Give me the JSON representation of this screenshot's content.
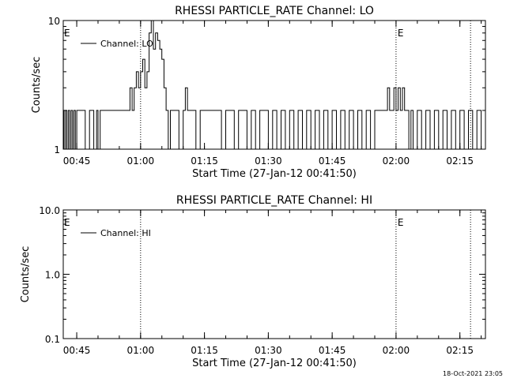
{
  "chart_data": [
    {
      "type": "line",
      "title": "RHESSI PARTICLE_RATE Channel: LO",
      "xlabel": "Start Time (27-Jan-12 00:41:50)",
      "ylabel": "Counts/sec",
      "y_scale": "log",
      "ylim": [
        1,
        10
      ],
      "xlim": [
        "00:41:50",
        "02:21:00"
      ],
      "x_ticks": [
        "00:45",
        "01:00",
        "01:15",
        "01:30",
        "01:45",
        "02:00",
        "02:15"
      ],
      "y_ticks": [
        "1",
        "10"
      ],
      "legend": {
        "placement": "top-left",
        "entries": [
          "Channel: LO"
        ]
      },
      "markers": [
        {
          "time": "01:00",
          "label": ""
        },
        {
          "time": "02:00",
          "label": "E"
        },
        {
          "time": "02:17:30",
          "label": ""
        }
      ],
      "edge_label": "E",
      "series": [
        {
          "name": "Channel: LO",
          "x": [
            "00:41:50",
            "00:42:00",
            "00:42:20",
            "00:42:40",
            "00:43:00",
            "00:43:20",
            "00:43:40",
            "00:44:00",
            "00:44:20",
            "00:44:40",
            "00:45:00",
            "00:45:20",
            "00:46:00",
            "00:47:00",
            "00:48:00",
            "00:49:00",
            "00:49:40",
            "00:50:00",
            "00:50:30",
            "00:51:00",
            "00:52:00",
            "00:53:00",
            "00:54:00",
            "00:55:00",
            "00:56:00",
            "00:57:00",
            "00:57:30",
            "00:58:00",
            "00:58:30",
            "00:59:00",
            "00:59:30",
            "01:00:00",
            "01:00:30",
            "01:01:00",
            "01:01:30",
            "01:02:00",
            "01:02:30",
            "01:03:00",
            "01:03:30",
            "01:04:00",
            "01:04:30",
            "01:05:00",
            "01:05:30",
            "01:06:00",
            "01:06:30",
            "01:07:00",
            "01:07:30",
            "01:08:00",
            "01:09:00",
            "01:10:00",
            "01:10:30",
            "01:11:00",
            "01:12:00",
            "01:13:00",
            "01:14:00",
            "01:15:00",
            "01:16:00",
            "01:17:00",
            "01:18:00",
            "01:19:00",
            "01:20:00",
            "01:21:00",
            "01:22:00",
            "01:23:00",
            "01:24:00",
            "01:25:00",
            "01:26:00",
            "01:27:00",
            "01:28:00",
            "01:29:00",
            "01:30:00",
            "01:31:00",
            "01:32:00",
            "01:33:00",
            "01:34:00",
            "01:35:00",
            "01:36:00",
            "01:37:00",
            "01:38:00",
            "01:39:00",
            "01:40:00",
            "01:41:00",
            "01:42:00",
            "01:43:00",
            "01:44:00",
            "01:45:00",
            "01:46:00",
            "01:47:00",
            "01:48:00",
            "01:49:00",
            "01:50:00",
            "01:51:00",
            "01:52:00",
            "01:53:00",
            "01:54:00",
            "01:55:00",
            "01:56:00",
            "01:57:00",
            "01:57:30",
            "01:58:00",
            "01:58:30",
            "01:59:00",
            "01:59:30",
            "02:00:00",
            "02:00:30",
            "02:01:00",
            "02:01:30",
            "02:02:00",
            "02:02:30",
            "02:03:00",
            "02:03:30",
            "02:04:00",
            "02:05:00",
            "02:06:00",
            "02:07:00",
            "02:08:00",
            "02:09:00",
            "02:10:00",
            "02:11:00",
            "02:12:00",
            "02:13:00",
            "02:14:00",
            "02:15:00",
            "02:16:00",
            "02:17:00",
            "02:18:00",
            "02:19:00",
            "02:20:00",
            "02:21:00"
          ],
          "y": [
            2,
            1,
            2,
            1,
            2,
            1,
            2,
            1,
            2,
            1,
            2,
            2,
            2,
            1,
            2,
            1,
            2,
            1,
            2,
            2,
            2,
            2,
            2,
            2,
            2,
            2,
            3,
            2,
            3,
            4,
            3,
            4,
            5,
            3,
            4,
            8,
            10,
            6,
            8,
            7,
            6,
            5,
            3,
            2,
            1,
            2,
            2,
            2,
            1,
            2,
            3,
            2,
            2,
            1,
            2,
            2,
            2,
            2,
            2,
            1,
            2,
            2,
            1,
            2,
            2,
            1,
            2,
            1,
            2,
            2,
            1,
            2,
            1,
            2,
            1,
            2,
            1,
            2,
            1,
            2,
            1,
            2,
            1,
            2,
            1,
            2,
            1,
            2,
            1,
            2,
            1,
            2,
            1,
            2,
            1,
            2,
            2,
            2,
            2,
            3,
            2,
            2,
            3,
            2,
            3,
            2,
            3,
            2,
            2,
            1,
            2,
            1,
            2,
            1,
            2,
            1,
            2,
            1,
            2,
            1,
            2,
            1,
            2,
            1,
            2,
            1,
            2,
            1,
            2
          ]
        }
      ]
    },
    {
      "type": "line",
      "title": "RHESSI PARTICLE_RATE Channel: HI",
      "xlabel": "Start Time (27-Jan-12 00:41:50)",
      "ylabel": "Counts/sec",
      "y_scale": "log",
      "ylim": [
        0.1,
        10.0
      ],
      "xlim": [
        "00:41:50",
        "02:21:00"
      ],
      "x_ticks": [
        "00:45",
        "01:00",
        "01:15",
        "01:30",
        "01:45",
        "02:00",
        "02:15"
      ],
      "y_ticks": [
        "0.1",
        "1.0",
        "10.0"
      ],
      "legend": {
        "placement": "top-left",
        "entries": [
          "Channel: HI"
        ]
      },
      "markers": [
        {
          "time": "01:00",
          "label": ""
        },
        {
          "time": "02:00",
          "label": "E"
        },
        {
          "time": "02:17:30",
          "label": ""
        }
      ],
      "edge_label": "E",
      "series": [
        {
          "name": "Channel: HI",
          "x": [],
          "y": []
        }
      ]
    }
  ],
  "footer": {
    "timestamp": "18-Oct-2021 23:05"
  }
}
